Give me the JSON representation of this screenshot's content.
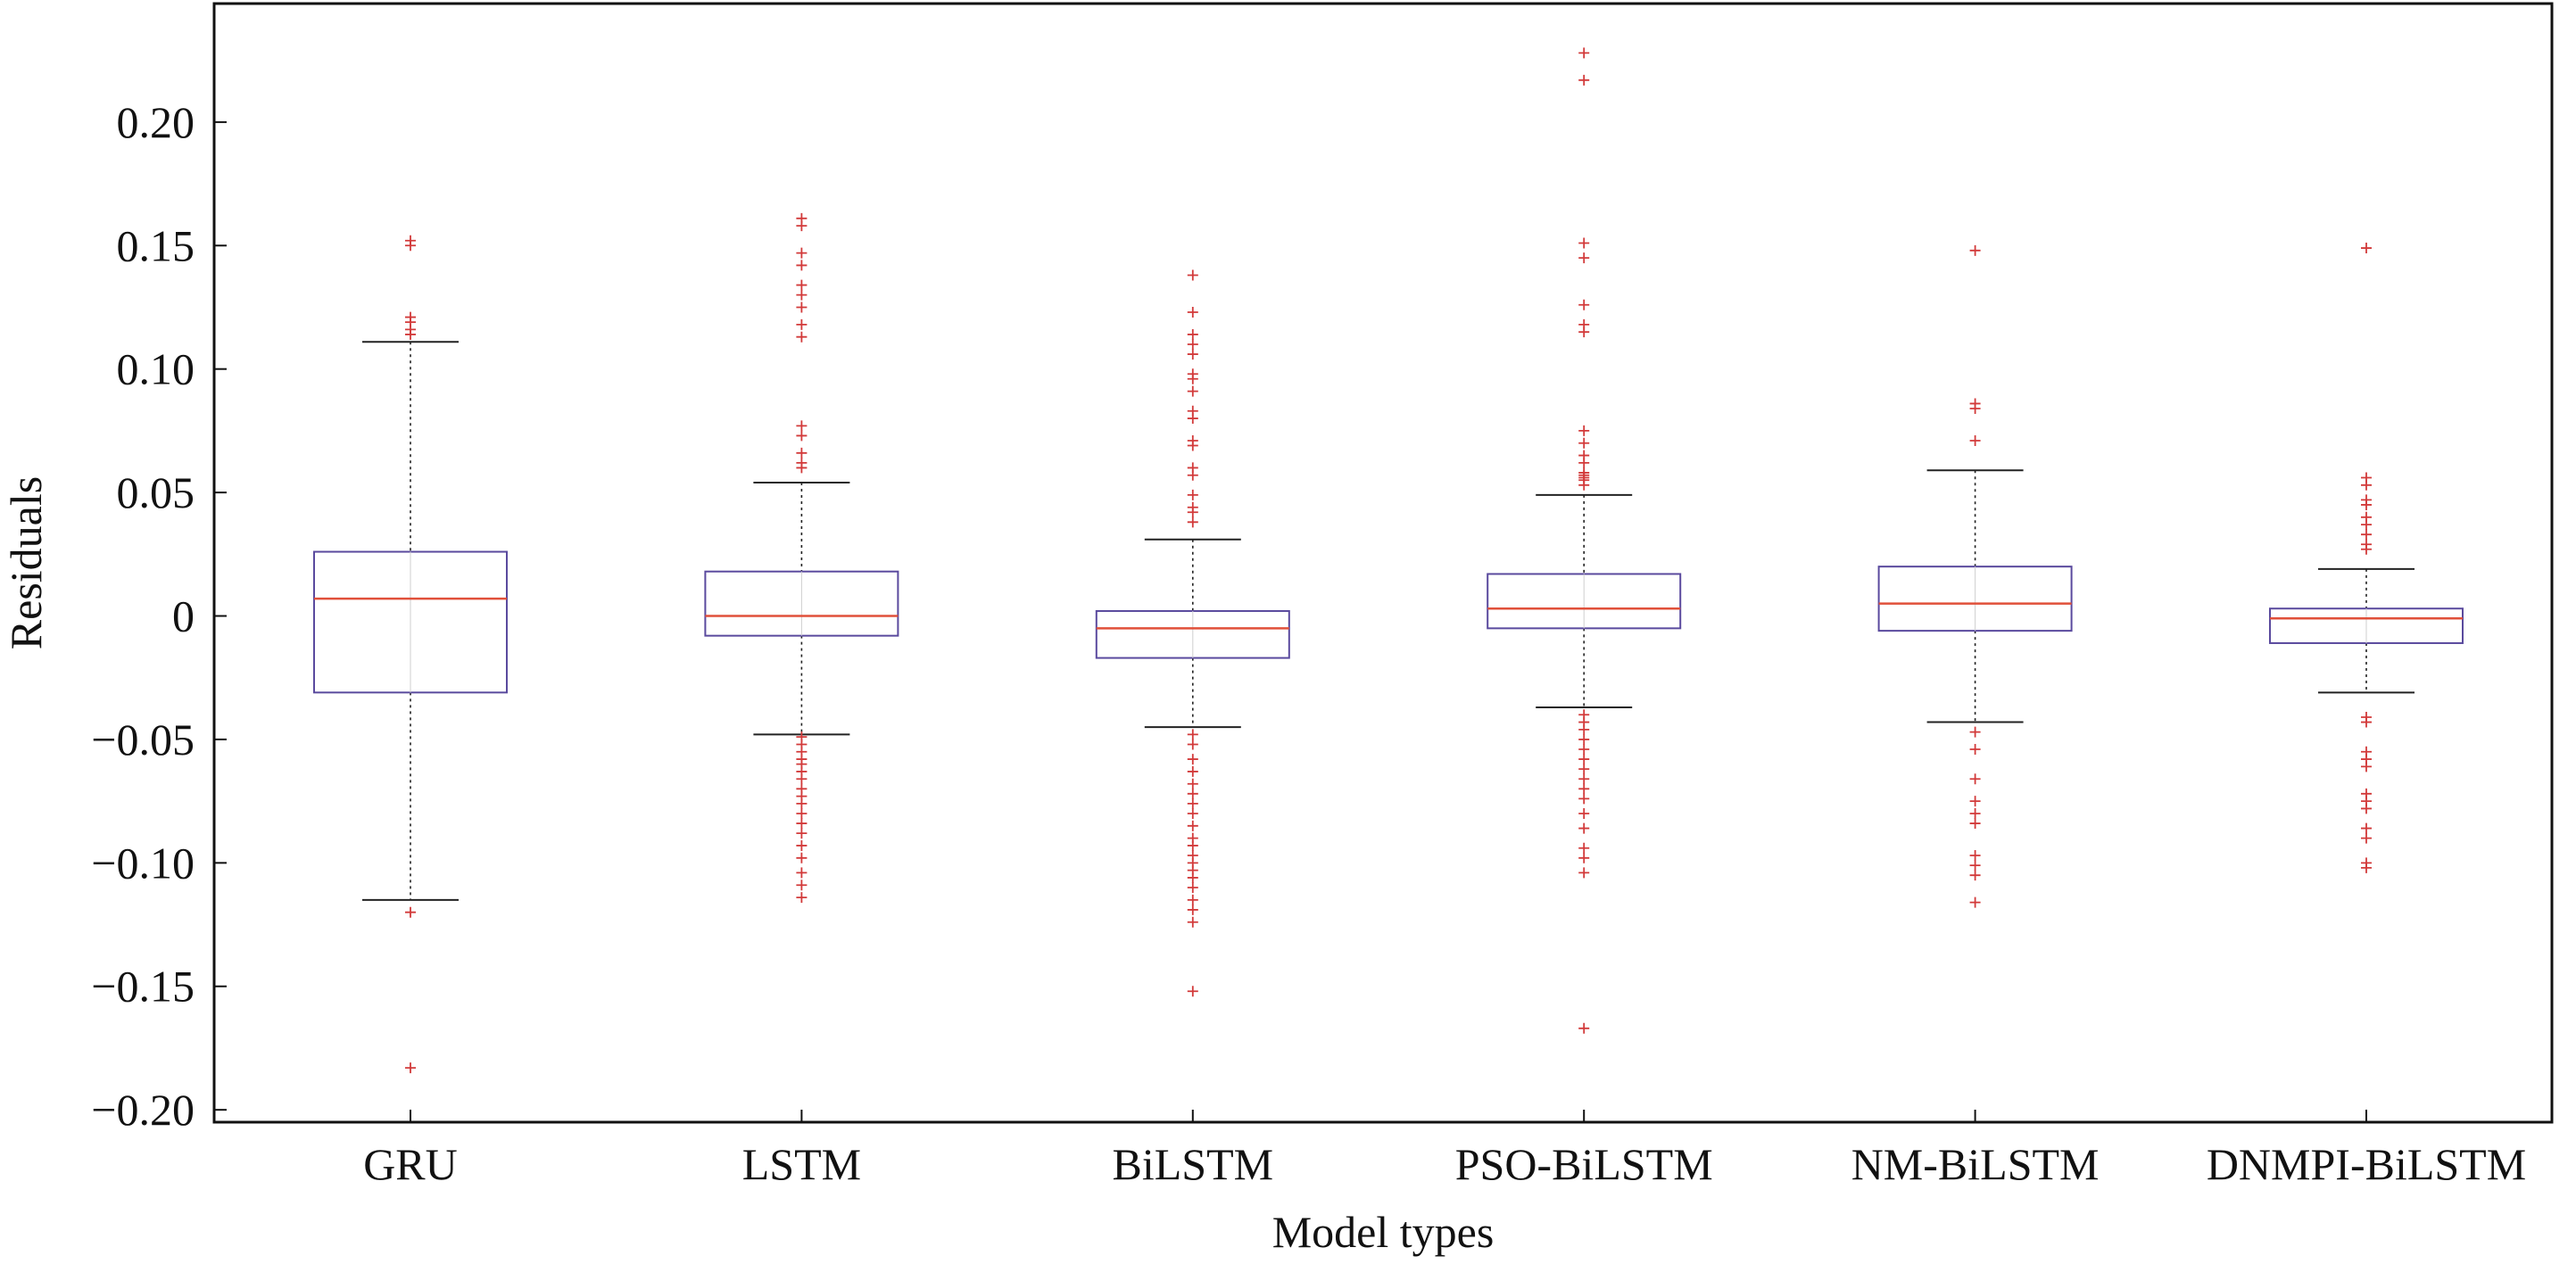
{
  "chart_data": {
    "type": "boxplot",
    "xlabel": "Model types",
    "ylabel": "Residuals",
    "ylim": [
      -0.205,
      0.248
    ],
    "yticks": [
      -0.2,
      -0.15,
      -0.1,
      -0.05,
      0,
      0.05,
      0.1,
      0.15,
      0.2
    ],
    "ytick_labels": [
      "−0.20",
      "−0.15",
      "−0.10",
      "−0.05",
      "0",
      "0.05",
      "0.10",
      "0.15",
      "0.20"
    ],
    "grid": false,
    "colors": {
      "box": "#5a4a9e",
      "median": "#e0503a",
      "whisker": "#222222",
      "outlier": "#d23a3a",
      "axis": "#111111"
    },
    "categories": [
      "GRU",
      "LSTM",
      "BiLSTM",
      "PSO-BiLSTM",
      "NM-BiLSTM",
      "DNMPI-BiLSTM"
    ],
    "boxes": [
      {
        "category": "GRU",
        "q1": -0.031,
        "median": 0.007,
        "q3": 0.026,
        "whisker_low": -0.115,
        "whisker_high": 0.111,
        "outliers": [
          0.152,
          0.15,
          0.121,
          0.119,
          0.116,
          0.114,
          -0.12,
          -0.183
        ]
      },
      {
        "category": "LSTM",
        "q1": -0.008,
        "median": 0.0,
        "q3": 0.018,
        "whisker_low": -0.048,
        "whisker_high": 0.054,
        "outliers": [
          0.161,
          0.158,
          0.147,
          0.142,
          0.134,
          0.13,
          0.125,
          0.118,
          0.113,
          0.077,
          0.073,
          0.066,
          0.062,
          0.06,
          -0.049,
          -0.052,
          -0.055,
          -0.058,
          -0.06,
          -0.063,
          -0.066,
          -0.07,
          -0.073,
          -0.076,
          -0.08,
          -0.084,
          -0.088,
          -0.093,
          -0.098,
          -0.104,
          -0.109,
          -0.114
        ]
      },
      {
        "category": "BiLSTM",
        "q1": -0.017,
        "median": -0.005,
        "q3": 0.002,
        "whisker_low": -0.045,
        "whisker_high": 0.031,
        "outliers": [
          0.138,
          0.123,
          0.114,
          0.11,
          0.106,
          0.098,
          0.096,
          0.091,
          0.083,
          0.08,
          0.071,
          0.069,
          0.06,
          0.057,
          0.049,
          0.044,
          0.042,
          0.038,
          -0.048,
          -0.052,
          -0.058,
          -0.063,
          -0.068,
          -0.072,
          -0.076,
          -0.08,
          -0.085,
          -0.09,
          -0.093,
          -0.097,
          -0.1,
          -0.103,
          -0.106,
          -0.11,
          -0.115,
          -0.119,
          -0.124,
          -0.152
        ]
      },
      {
        "category": "PSO-BiLSTM",
        "q1": -0.005,
        "median": 0.003,
        "q3": 0.017,
        "whisker_low": -0.037,
        "whisker_high": 0.049,
        "outliers": [
          0.228,
          0.217,
          0.151,
          0.145,
          0.126,
          0.118,
          0.115,
          0.075,
          0.07,
          0.065,
          0.062,
          0.058,
          0.057,
          0.056,
          0.055,
          0.053,
          -0.04,
          -0.043,
          -0.046,
          -0.05,
          -0.054,
          -0.058,
          -0.062,
          -0.066,
          -0.07,
          -0.074,
          -0.08,
          -0.086,
          -0.094,
          -0.098,
          -0.104,
          -0.167
        ]
      },
      {
        "category": "NM-BiLSTM",
        "q1": -0.006,
        "median": 0.005,
        "q3": 0.02,
        "whisker_low": -0.043,
        "whisker_high": 0.059,
        "outliers": [
          0.148,
          0.086,
          0.084,
          0.071,
          -0.047,
          -0.054,
          -0.066,
          -0.075,
          -0.08,
          -0.084,
          -0.097,
          -0.101,
          -0.105,
          -0.116
        ]
      },
      {
        "category": "DNMPI-BiLSTM",
        "q1": -0.011,
        "median": -0.001,
        "q3": 0.003,
        "whisker_low": -0.031,
        "whisker_high": 0.019,
        "outliers": [
          0.149,
          0.056,
          0.053,
          0.047,
          0.045,
          0.04,
          0.037,
          0.033,
          0.029,
          0.027,
          -0.041,
          -0.043,
          -0.055,
          -0.058,
          -0.061,
          -0.072,
          -0.075,
          -0.078,
          -0.086,
          -0.09,
          -0.1,
          -0.102
        ]
      }
    ]
  }
}
